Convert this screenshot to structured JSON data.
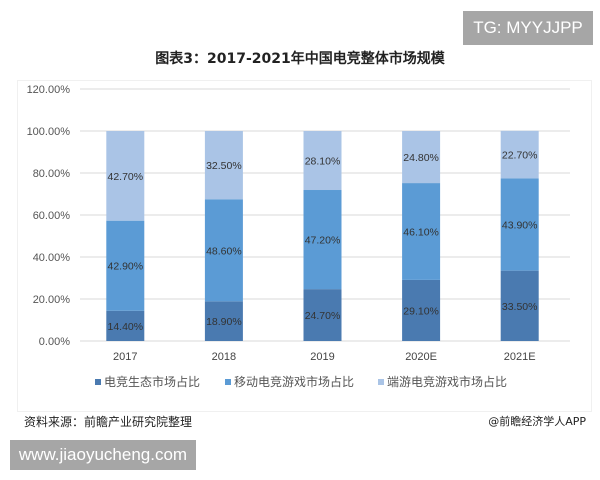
{
  "watermark_top": "TG: MYYJJPP",
  "watermark_bottom": "www.jiaoyucheng.com",
  "source": "资料来源：前瞻产业研究院整理",
  "credit": "@前瞻经济学人APP",
  "chart_data": {
    "type": "bar",
    "stacked": true,
    "title": "图表3：2017-2021年中国电竞整体市场规模",
    "categories": [
      "2017",
      "2018",
      "2019",
      "2020E",
      "2021E"
    ],
    "series": [
      {
        "name": "电竞生态市场占比",
        "values": [
          14.4,
          18.9,
          24.7,
          29.1,
          33.5
        ],
        "color": "#4a7ab0"
      },
      {
        "name": "移动电竞游戏市场占比",
        "values": [
          42.9,
          48.6,
          47.2,
          46.1,
          43.9
        ],
        "color": "#5b9bd5"
      },
      {
        "name": "端游电竞游戏市场占比",
        "values": [
          42.7,
          32.5,
          28.1,
          24.8,
          22.7
        ],
        "color": "#aac4e6"
      }
    ],
    "yticks": [
      "0.00%",
      "20.00%",
      "40.00%",
      "60.00%",
      "80.00%",
      "100.00%",
      "120.00%"
    ],
    "ylim": [
      0,
      120
    ],
    "grid": true,
    "legend": "bottom"
  }
}
